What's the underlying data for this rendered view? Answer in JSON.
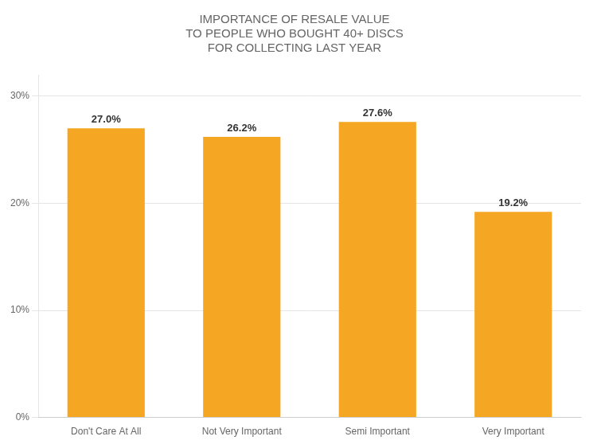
{
  "chart_data": {
    "type": "bar",
    "title": [
      "IMPORTANCE OF RESALE VALUE",
      "TO PEOPLE WHO BOUGHT 40+ DISCS",
      "FOR COLLECTING LAST YEAR"
    ],
    "categories": [
      "Don't Care At All",
      "Not Very Important",
      "Semi Important",
      "Very Important"
    ],
    "values": [
      27.0,
      26.2,
      27.6,
      19.2
    ],
    "value_labels": [
      "27.0%",
      "26.2%",
      "27.6%",
      "19.2%"
    ],
    "data_labels": true,
    "color": "#F5A623",
    "ylim": [
      0,
      32
    ],
    "yticks": [
      {
        "value": 0,
        "label": "0%"
      },
      {
        "value": 10,
        "label": "10%"
      },
      {
        "value": 20,
        "label": "20%"
      },
      {
        "value": 30,
        "label": "30%"
      }
    ],
    "grid": true
  }
}
